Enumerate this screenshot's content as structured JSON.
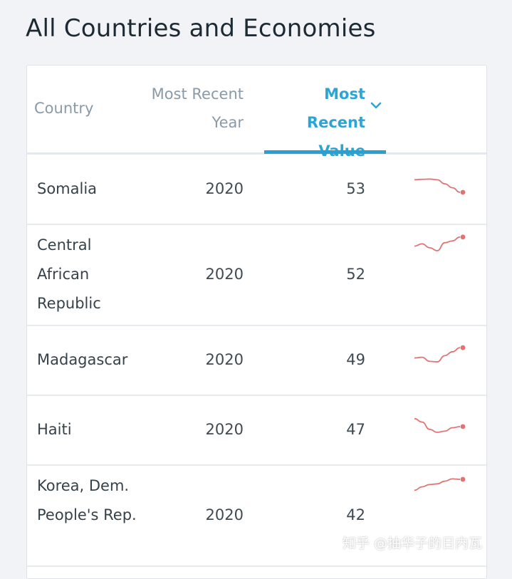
{
  "page": {
    "title": "All Countries and Economies"
  },
  "table": {
    "headers": {
      "country": "Country",
      "year_line1": "Most Recent",
      "year_line2": "Year",
      "value_line1": "Most Recent",
      "value_line2": "Value"
    },
    "sort": {
      "column": "Most Recent Value",
      "direction": "descending",
      "icon": "chevron-down-icon"
    },
    "rows": [
      {
        "country": "Somalia",
        "year": "2020",
        "value": "53",
        "trend": [
          0.8,
          0.82,
          0.83,
          0.8,
          0.62,
          0.45,
          0.25
        ]
      },
      {
        "country": "Central African Republic",
        "year": "2020",
        "value": "52",
        "trend": [
          0.45,
          0.55,
          0.38,
          0.25,
          0.6,
          0.68,
          0.85
        ]
      },
      {
        "country": "Madagascar",
        "year": "2020",
        "value": "49",
        "trend": [
          0.45,
          0.48,
          0.3,
          0.28,
          0.55,
          0.72,
          0.9
        ]
      },
      {
        "country": "Haiti",
        "year": "2020",
        "value": "47",
        "trend": [
          0.85,
          0.7,
          0.38,
          0.25,
          0.3,
          0.45,
          0.5
        ]
      },
      {
        "country": "Korea, Dem. People's Rep.",
        "year": "2020",
        "value": "42",
        "trend": [
          0.3,
          0.45,
          0.55,
          0.58,
          0.7,
          0.8,
          0.78
        ]
      }
    ]
  },
  "colors": {
    "accent": "#2a9fd0",
    "sparkline": "#e07474",
    "text": "#354249"
  },
  "watermark": {
    "text": "知乎 @抽华子的日内瓦"
  }
}
